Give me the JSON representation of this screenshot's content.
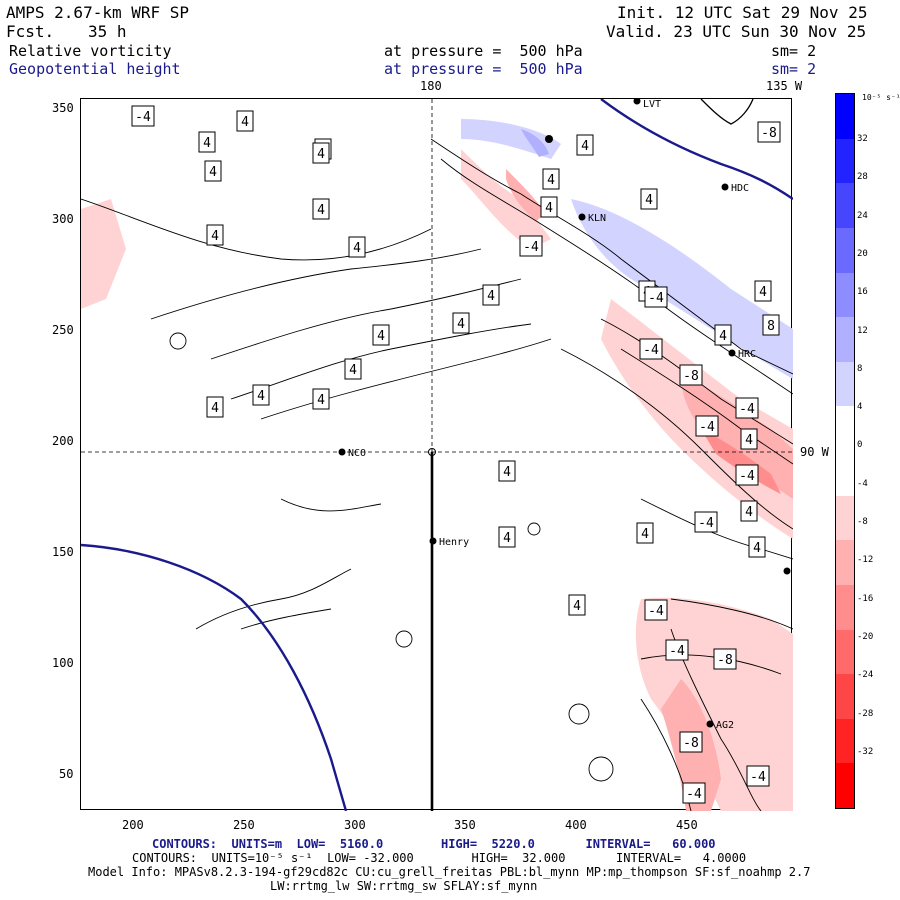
{
  "header": {
    "model": "AMPS 2.67-km WRF SP",
    "fcst_label": "Fcst.",
    "fcst_value": "35 h",
    "init": "Init. 12 UTC Sat 29 Nov 25",
    "valid": "Valid. 23 UTC Sun 30 Nov 25",
    "field1": "Relative vorticity",
    "field2": "Geopotential height",
    "level1": "at pressure =  500 hPa",
    "level2": "at pressure =  500 hPa",
    "sm1": "sm= 2",
    "sm2": "sm= 2"
  },
  "map": {
    "meridian_top_label": "180",
    "meridian_top_right_label": "135 W",
    "parallel_right_label": "90 W",
    "stations": [
      "LVT",
      "HDC",
      "KLN",
      "HRC",
      "NCO",
      "Henry",
      "AG2"
    ],
    "x_ticks": [
      "200",
      "250",
      "300",
      "350",
      "400",
      "450"
    ],
    "y_ticks": [
      "350",
      "300",
      "250",
      "200",
      "150",
      "100",
      "50"
    ],
    "contour_labels": [
      "-4",
      "4",
      "4",
      "4",
      "4",
      "4",
      "4",
      "4",
      "4",
      "4",
      "4",
      "4",
      "4",
      "4",
      "4",
      "4",
      "4",
      "4",
      "4",
      "4",
      "4",
      "4",
      "4",
      "4",
      "4",
      "4",
      "4",
      "4",
      "4",
      "4",
      "-4",
      "-4",
      "-4",
      "-4",
      "-4",
      "-4",
      "-4",
      "-4",
      "-4",
      "-4",
      "-4",
      "-8",
      "-8",
      "-8",
      "-8",
      "8"
    ]
  },
  "colorbar": {
    "units": "10⁻⁵ s⁻¹",
    "labels": [
      "32",
      "28",
      "24",
      "20",
      "16",
      "12",
      "8",
      "4",
      "0",
      "-4",
      "-8",
      "-12",
      "-16",
      "-20",
      "-24",
      "-28",
      "-32"
    ],
    "colors": [
      "#0000ff",
      "#2323ff",
      "#4646ff",
      "#6a6aff",
      "#8d8dff",
      "#b0b0ff",
      "#d3d3ff",
      "#ffffff",
      "#ffffff",
      "#ffd3d3",
      "#ffb0b0",
      "#ff8d8d",
      "#ff6a6a",
      "#ff4646",
      "#ff2323",
      "#ff0000"
    ]
  },
  "footer": {
    "line1": "CONTOURS:  UNITS=m  LOW=  5160.0        HIGH=  5220.0       INTERVAL=   60.000",
    "line2": "CONTOURS:  UNITS=10⁻⁵ s⁻¹  LOW= -32.000        HIGH=  32.000       INTERVAL=   4.0000",
    "line3": "Model Info: MPASv8.2.3-194-gf29cd82c CU:cu_grell_freitas PBL:bl_mynn MP:mp_thompson SF:sf_noahmp 2.7",
    "line4": "LW:rrtmg_lw SW:rrtmg_sw SFLAY:sf_mynn"
  }
}
